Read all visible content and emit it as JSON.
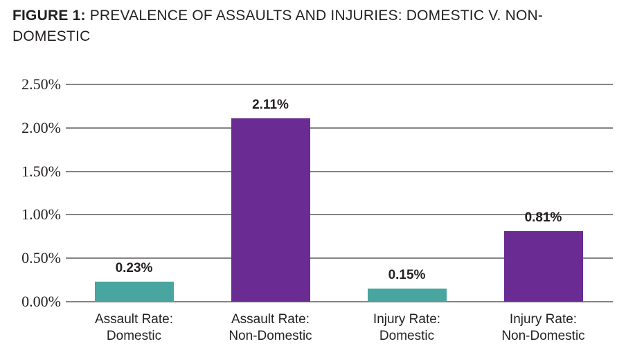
{
  "title": {
    "prefix": "FIGURE 1:",
    "text": " PREVALENCE OF ASSAULTS AND INJURIES: DOMESTIC V. NON-DOMESTIC"
  },
  "chart_data": {
    "type": "bar",
    "title": "FIGURE 1: PREVALENCE OF ASSAULTS AND INJURIES: DOMESTIC V. NON-DOMESTIC",
    "categories": [
      "Assault Rate: Domestic",
      "Assault Rate: Non-Domestic",
      "Injury Rate: Domestic",
      "Injury Rate: Non-Domestic"
    ],
    "category_lines": [
      [
        "Assault Rate:",
        "Domestic"
      ],
      [
        "Assault Rate:",
        "Non-Domestic"
      ],
      [
        "Injury Rate:",
        "Domestic"
      ],
      [
        "Injury Rate:",
        "Non-Domestic"
      ]
    ],
    "values": [
      0.23,
      2.11,
      0.15,
      0.81
    ],
    "value_labels": [
      "0.23%",
      "2.11%",
      "0.15%",
      "0.81%"
    ],
    "bar_colors": [
      "#48a5a0",
      "#6a2c93",
      "#48a5a0",
      "#6a2c93"
    ],
    "xlabel": "",
    "ylabel": "",
    "ylim": [
      0,
      2.5
    ],
    "yticks": [
      0,
      0.5,
      1.0,
      1.5,
      2.0,
      2.5
    ],
    "ytick_labels": [
      "0.00%",
      "0.50%",
      "1.00%",
      "1.50%",
      "2.00%",
      "2.50%"
    ],
    "grid": true,
    "legend": false
  },
  "colors": {
    "teal": "#48a5a0",
    "purple": "#6a2c93",
    "gridline": "#848484",
    "text": "#231f20"
  }
}
